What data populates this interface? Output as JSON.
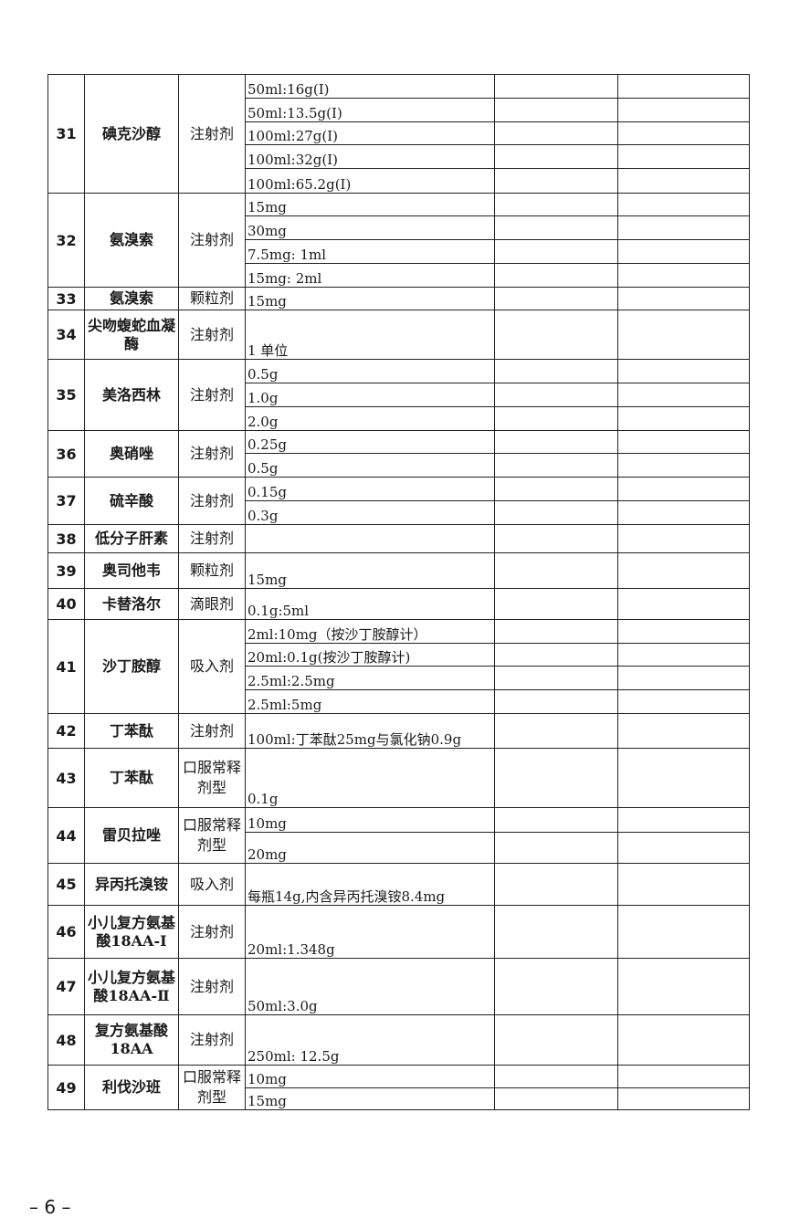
{
  "rows": [
    {
      "no": "31",
      "name": "碘克沙醇",
      "form": "注射剂",
      "specs": [
        "50ml:16g(I)",
        "50ml:13.5g(I)",
        "100ml:27g(I)",
        "100ml:32g(I)",
        "100ml:65.2g(I)"
      ]
    },
    {
      "no": "32",
      "name": "氨溴索",
      "form": "注射剂",
      "specs": [
        "15mg",
        "30mg",
        "7.5mg: 1ml",
        "15mg: 2ml"
      ]
    },
    {
      "no": "33",
      "name": "氨溴索",
      "form": "颗粒剂",
      "specs": [
        "15mg"
      ]
    },
    {
      "no": "34",
      "name": "尖吻蝮蛇血凝酶",
      "form": "注射剂",
      "specs": [
        "1 单位"
      ]
    },
    {
      "no": "35",
      "name": "美洛西林",
      "form": "注射剂",
      "specs": [
        "0.5g",
        "1.0g",
        "2.0g"
      ]
    },
    {
      "no": "36",
      "name": "奥硝唑",
      "form": "注射剂",
      "specs": [
        "0.25g",
        "0.5g"
      ]
    },
    {
      "no": "37",
      "name": "硫辛酸",
      "form": "注射剂",
      "specs": [
        "0.15g",
        "0.3g"
      ]
    },
    {
      "no": "38",
      "name": "低分子肝素",
      "form": "注射剂",
      "specs": [
        ""
      ]
    },
    {
      "no": "39",
      "name": "奥司他韦",
      "form": "颗粒剂",
      "specs": [
        "15mg"
      ]
    },
    {
      "no": "40",
      "name": "卡替洛尔",
      "form": "滴眼剂",
      "specs": [
        "0.1g:5ml"
      ]
    },
    {
      "no": "41",
      "name": "沙丁胺醇",
      "form": "吸入剂",
      "specs": [
        "2ml:10mg（按沙丁胺醇计）",
        "20ml:0.1g(按沙丁胺醇计)",
        "2.5ml:2.5mg",
        "2.5ml:5mg"
      ]
    },
    {
      "no": "42",
      "name": "丁苯酞",
      "form": "注射剂",
      "specs": [
        "100ml:丁苯酞25mg与氯化钠0.9g"
      ]
    },
    {
      "no": "43",
      "name": "丁苯酞",
      "form": "口服常释剂型",
      "specs": [
        "0.1g"
      ]
    },
    {
      "no": "44",
      "name": "雷贝拉唑",
      "form": "口服常释剂型",
      "specs": [
        "10mg",
        "20mg"
      ]
    },
    {
      "no": "45",
      "name": "异丙托溴铵",
      "form": "吸入剂",
      "specs": [
        "每瓶14g,内含异丙托溴铵8.4mg"
      ]
    },
    {
      "no": "46",
      "name": "小儿复方氨基酸18AA-Ⅰ",
      "form": "注射剂",
      "specs": [
        "20ml:1.348g"
      ]
    },
    {
      "no": "47",
      "name": "小儿复方氨基酸18AA-Ⅱ",
      "form": "注射剂",
      "specs": [
        "50ml:3.0g"
      ]
    },
    {
      "no": "48",
      "name": "复方氨基酸18AA",
      "form": "注射剂",
      "specs": [
        "250ml: 12.5g"
      ]
    },
    {
      "no": "49",
      "name": "利伐沙班",
      "form": "口服常释剂型",
      "specs": [
        "10mg",
        "15mg"
      ]
    }
  ],
  "footer": {
    "page": "– 6 –"
  }
}
